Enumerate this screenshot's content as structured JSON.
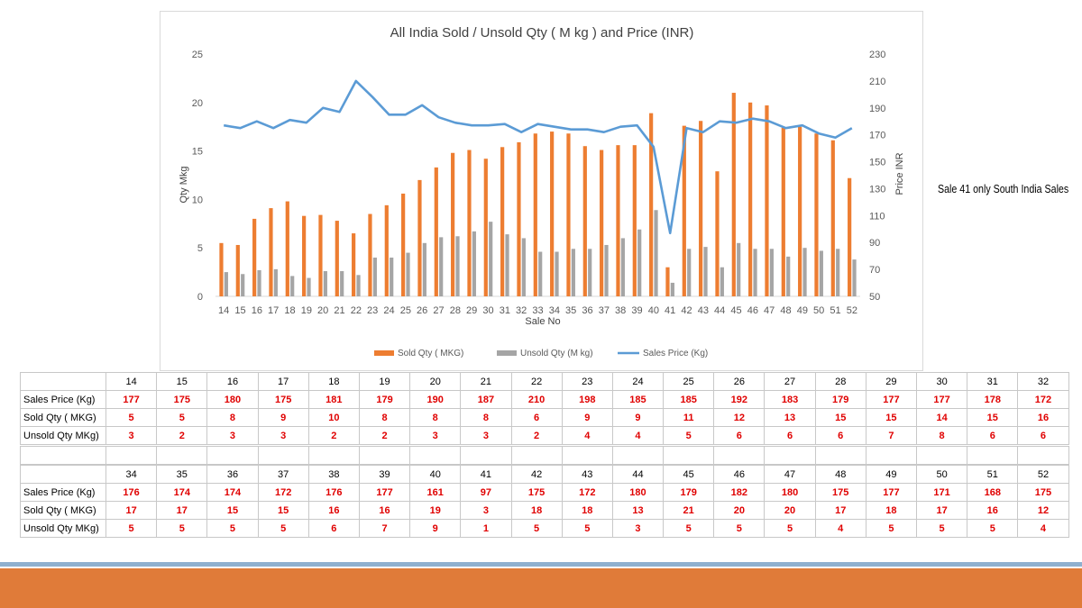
{
  "note": "Sale 41 only South India Sales",
  "colors": {
    "sold": "#ed7d31",
    "unsold": "#a5a5a5",
    "price": "#5b9bd5",
    "value_text": "#e00000"
  },
  "chart_data": {
    "type": "bar",
    "title": "All India Sold / Unsold Qty ( M kg ) and Price (INR)",
    "xlabel": "Sale No",
    "ylabel": "Qty Mkg",
    "y2label": "Price INR",
    "ylim": [
      0,
      25
    ],
    "yticks": [
      0,
      5,
      10,
      15,
      20,
      25
    ],
    "y2lim": [
      50,
      230
    ],
    "y2ticks": [
      50,
      70,
      90,
      110,
      130,
      150,
      170,
      190,
      210,
      230
    ],
    "categories": [
      "14",
      "15",
      "16",
      "17",
      "18",
      "19",
      "20",
      "21",
      "22",
      "23",
      "24",
      "25",
      "26",
      "27",
      "28",
      "29",
      "30",
      "31",
      "32",
      "33",
      "34",
      "35",
      "36",
      "37",
      "38",
      "39",
      "40",
      "41",
      "42",
      "43",
      "44",
      "45",
      "46",
      "47",
      "48",
      "49",
      "50",
      "51",
      "52"
    ],
    "series": [
      {
        "name": "Sold Qty ( MKG)",
        "kind": "bar",
        "values": [
          5.5,
          5.3,
          8.0,
          9.1,
          9.8,
          8.3,
          8.4,
          7.8,
          6.5,
          8.5,
          9.4,
          10.6,
          12.0,
          13.3,
          14.8,
          15.1,
          14.2,
          15.4,
          15.9,
          16.8,
          17.0,
          16.8,
          15.5,
          15.1,
          15.6,
          15.6,
          18.9,
          3.0,
          17.6,
          18.1,
          12.9,
          21.0,
          20.0,
          19.7,
          17.4,
          17.5,
          16.8,
          16.1,
          12.2
        ]
      },
      {
        "name": "Unsold Qty (M kg)",
        "kind": "bar",
        "values": [
          2.5,
          2.3,
          2.7,
          2.8,
          2.1,
          1.9,
          2.6,
          2.6,
          2.2,
          4.0,
          4.0,
          4.5,
          5.5,
          6.1,
          6.2,
          6.7,
          7.7,
          6.4,
          6.0,
          4.6,
          4.6,
          4.9,
          4.9,
          5.3,
          6.0,
          6.9,
          8.9,
          1.4,
          4.9,
          5.1,
          3.0,
          5.5,
          4.9,
          4.9,
          4.1,
          5.0,
          4.7,
          4.9,
          3.8
        ]
      },
      {
        "name": "Sales Price (Kg)",
        "kind": "line",
        "axis": "right",
        "values": [
          177,
          175,
          180,
          175,
          181,
          179,
          190,
          187,
          210,
          198,
          185,
          185,
          192,
          183,
          179,
          177,
          177,
          178,
          172,
          178,
          176,
          174,
          174,
          172,
          176,
          177,
          161,
          97,
          175,
          172,
          180,
          179,
          182,
          180,
          175,
          177,
          171,
          168,
          175
        ]
      }
    ],
    "legend": "bottom"
  },
  "table": {
    "row_labels": [
      "Sales Price (Kg)",
      "Sold Qty ( MKG)",
      "Unsold Qty MKg)"
    ],
    "block1": {
      "sales": [
        "14",
        "15",
        "16",
        "17",
        "18",
        "19",
        "20",
        "21",
        "22",
        "23",
        "24",
        "25",
        "26",
        "27",
        "28",
        "29",
        "30",
        "31",
        "32"
      ],
      "price": [
        "177",
        "175",
        "180",
        "175",
        "181",
        "179",
        "190",
        "187",
        "210",
        "198",
        "185",
        "185",
        "192",
        "183",
        "179",
        "177",
        "177",
        "178",
        "172"
      ],
      "sold": [
        "5",
        "5",
        "8",
        "9",
        "10",
        "8",
        "8",
        "8",
        "6",
        "9",
        "9",
        "11",
        "12",
        "13",
        "15",
        "15",
        "14",
        "15",
        "16"
      ],
      "unsold": [
        "3",
        "2",
        "3",
        "3",
        "2",
        "2",
        "3",
        "3",
        "2",
        "4",
        "4",
        "5",
        "6",
        "6",
        "6",
        "7",
        "8",
        "6",
        "6"
      ]
    },
    "block2": {
      "sales": [
        "34",
        "35",
        "36",
        "37",
        "38",
        "39",
        "40",
        "41",
        "42",
        "43",
        "44",
        "45",
        "46",
        "47",
        "48",
        "49",
        "50",
        "51",
        "52"
      ],
      "price": [
        "176",
        "174",
        "174",
        "172",
        "176",
        "177",
        "161",
        "97",
        "175",
        "172",
        "180",
        "179",
        "182",
        "180",
        "175",
        "177",
        "171",
        "168",
        "175"
      ],
      "sold": [
        "17",
        "17",
        "15",
        "15",
        "16",
        "16",
        "19",
        "3",
        "18",
        "18",
        "13",
        "21",
        "20",
        "20",
        "17",
        "18",
        "17",
        "16",
        "12"
      ],
      "unsold": [
        "5",
        "5",
        "5",
        "5",
        "6",
        "7",
        "9",
        "1",
        "5",
        "5",
        "3",
        "5",
        "5",
        "5",
        "4",
        "5",
        "5",
        "5",
        "4"
      ]
    }
  }
}
